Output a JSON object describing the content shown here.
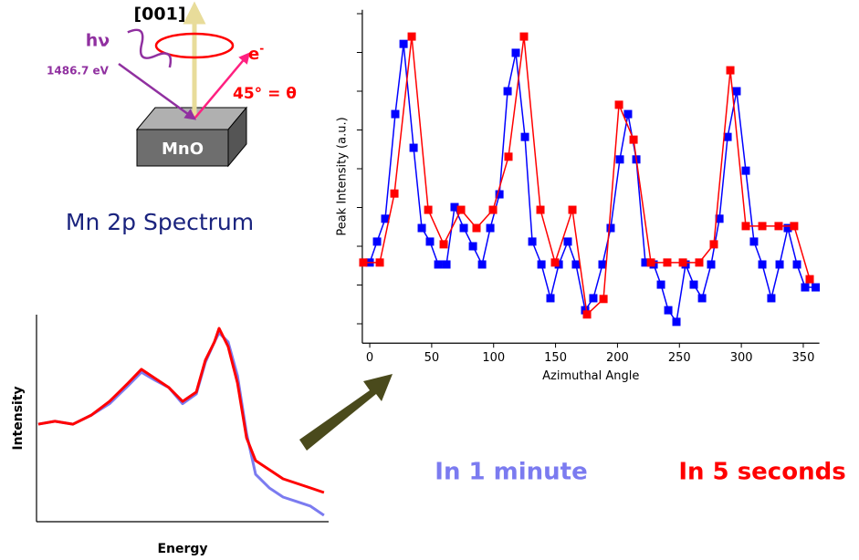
{
  "diagram": {
    "axis_label": "[001]",
    "photon_label": "hν",
    "photon_energy": "1486.7 eV",
    "electron_label": "e",
    "electron_sup": "-",
    "angle_label": "45° = θ",
    "sample_label": "MnO"
  },
  "spectrum_title": "Mn 2p Spectrum",
  "captions": [
    {
      "text": "In 1 minute",
      "color": "#7b7bf0"
    },
    {
      "text": "In 5 seconds",
      "color": "#ff0000"
    }
  ],
  "chart_data": [
    {
      "type": "line",
      "markers": "square",
      "x_label": "Azimuthal Angle",
      "y_label": "Peak Intensity (a.u.)",
      "xlim": [
        -6,
        363
      ],
      "ylim": [
        -0.5,
        8.1
      ],
      "xticks": [
        0,
        50,
        100,
        150,
        200,
        250,
        300,
        350
      ],
      "yticks": [
        0,
        1,
        2,
        3,
        4,
        5,
        6,
        7,
        8
      ],
      "series": [
        {
          "name": "In 1 minute",
          "color": "#0000ff",
          "x": [
            0,
            5.9,
            12.5,
            20.6,
            27.3,
            35.4,
            42,
            48.6,
            55.3,
            61.9,
            68.5,
            75.9,
            83.3,
            90.7,
            97.3,
            104.7,
            111.3,
            117.9,
            125.3,
            131.2,
            138.6,
            145.9,
            152.6,
            159.9,
            166.5,
            173.9,
            180.5,
            187.9,
            194.5,
            201.9,
            208.5,
            215.2,
            222.5,
            229.2,
            235.1,
            241,
            247.6,
            255,
            261.6,
            268.3,
            275.6,
            282.3,
            288.9,
            296.2,
            303.6,
            310.2,
            316.9,
            324.2,
            330.9,
            337.5,
            344.9,
            351.5,
            360
          ],
          "values": [
            1.58,
            2.12,
            2.71,
            5.41,
            7.22,
            4.54,
            2.47,
            2.12,
            1.53,
            1.53,
            3.01,
            2.47,
            2.0,
            1.53,
            2.47,
            3.34,
            6.0,
            6.99,
            4.82,
            2.12,
            1.53,
            0.66,
            1.53,
            2.12,
            1.53,
            0.35,
            0.66,
            1.53,
            2.47,
            4.24,
            5.41,
            4.24,
            1.58,
            1.53,
            1.01,
            0.35,
            0.05,
            1.53,
            1.01,
            0.66,
            1.53,
            2.71,
            4.82,
            6.0,
            3.95,
            2.12,
            1.53,
            0.66,
            1.53,
            2.47,
            1.53,
            0.94,
            0.94
          ]
        },
        {
          "name": "In 5 seconds",
          "color": "#ff0000",
          "x": [
            -5.2,
            8.1,
            19.9,
            33.9,
            47.2,
            59.7,
            73.7,
            86.2,
            99.5,
            112,
            124.5,
            137.8,
            149.6,
            163.6,
            175.4,
            188.7,
            201.2,
            213,
            227,
            240.2,
            252.8,
            266,
            277.8,
            291.1,
            303.6,
            316.9,
            330.1,
            342.6,
            355.2
          ],
          "values": [
            1.58,
            1.58,
            3.36,
            7.41,
            2.94,
            2.05,
            2.94,
            2.47,
            2.94,
            4.31,
            7.41,
            2.94,
            1.58,
            2.94,
            0.24,
            0.64,
            5.65,
            4.75,
            1.58,
            1.58,
            1.58,
            1.58,
            2.05,
            6.54,
            2.52,
            2.52,
            2.52,
            2.52,
            1.15
          ]
        }
      ]
    },
    {
      "type": "line",
      "x_label": "Energy",
      "y_label": "Intensity",
      "xlim": [
        0,
        100
      ],
      "ylim": [
        0,
        100
      ],
      "series": [
        {
          "name": "In 1 minute",
          "color": "#7b7bf0",
          "x": [
            0.6,
            6.3,
            12.5,
            18.8,
            25,
            31.3,
            35.9,
            40.6,
            45.3,
            50,
            54.7,
            57.8,
            60.9,
            62.5,
            65.6,
            68.8,
            71.9,
            75,
            79.7,
            84.4,
            89.1,
            93.8,
            98.4
          ],
          "values": [
            47.1,
            48.5,
            47.1,
            51.5,
            57,
            65.6,
            72.2,
            68.3,
            64.8,
            57,
            61.7,
            77,
            86.8,
            91.2,
            86.8,
            70.5,
            42.7,
            22.9,
            16.3,
            11.9,
            9.7,
            7.5,
            3.1
          ]
        },
        {
          "name": "In 5 seconds",
          "color": "#ff0000",
          "x": [
            0.6,
            6.3,
            12.5,
            18.8,
            25,
            31.3,
            35.9,
            40.6,
            45.3,
            50,
            54.7,
            57.8,
            60.9,
            62.5,
            65.6,
            68.8,
            71.9,
            75,
            79.7,
            84.4,
            89.1,
            93.8,
            98.4
          ],
          "values": [
            47.1,
            48.5,
            47.1,
            51.5,
            58.1,
            66.9,
            73.6,
            69.2,
            64.8,
            58.1,
            62.6,
            78,
            86.8,
            93.4,
            84.6,
            67,
            40.5,
            29.5,
            25.1,
            20.7,
            18.5,
            16.3,
            14.1
          ]
        }
      ]
    }
  ]
}
